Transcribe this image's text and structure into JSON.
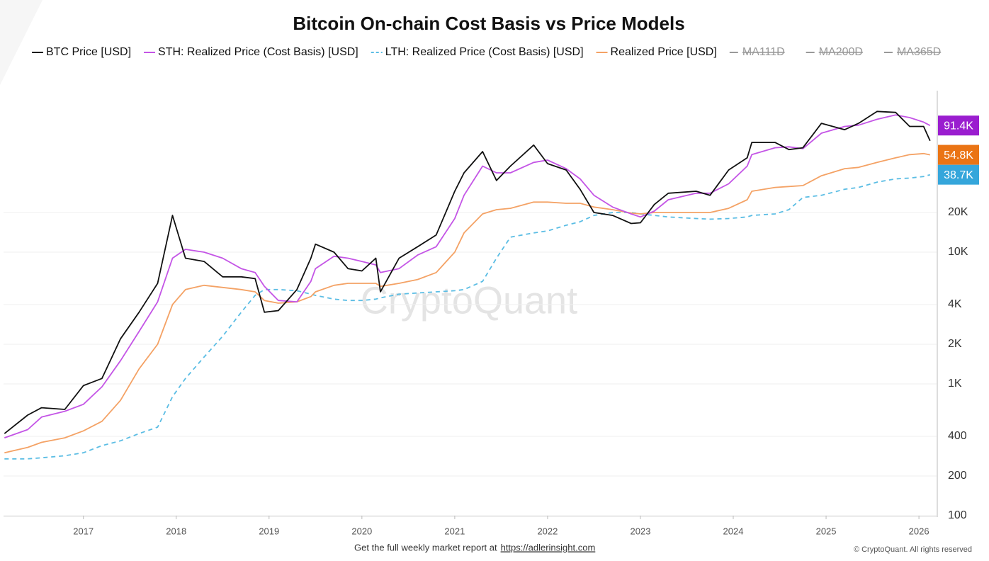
{
  "chart_data": {
    "type": "line",
    "title": "Bitcoin On-chain Cost Basis vs Price Models",
    "log_y": true,
    "grid": true,
    "legend_position": "top",
    "legend_hidden": [
      "MA111D",
      "MA200D",
      "MA365D"
    ],
    "watermark": "CryptoQuant",
    "footer_text": "Get the full weekly market report at",
    "footer_link": "https://adlerinsight.com",
    "copyright": "© CryptoQuant. All rights reserved",
    "xlim": [
      2016.14,
      2026.19
    ],
    "xticks": [
      2017,
      2018,
      2019,
      2020,
      2021,
      2022,
      2023,
      2024,
      2025,
      2026
    ],
    "ylim": [
      100,
      164000
    ],
    "yticks": [
      100,
      200,
      400,
      {
        "value": 1000,
        "label": "1K"
      },
      {
        "value": 2000,
        "label": "2K"
      },
      {
        "value": 4000,
        "label": "4K"
      },
      {
        "value": 10000,
        "label": "10K"
      },
      {
        "value": 20000,
        "label": "20K"
      }
    ],
    "x": [
      2016.15,
      2016.4,
      2016.55,
      2016.8,
      2017.0,
      2017.2,
      2017.4,
      2017.6,
      2017.8,
      2017.96,
      2018.1,
      2018.3,
      2018.5,
      2018.7,
      2018.85,
      2018.95,
      2019.1,
      2019.3,
      2019.45,
      2019.5,
      2019.7,
      2019.85,
      2020.0,
      2020.15,
      2020.2,
      2020.4,
      2020.6,
      2020.8,
      2021.0,
      2021.1,
      2021.3,
      2021.45,
      2021.6,
      2021.85,
      2022.0,
      2022.2,
      2022.35,
      2022.5,
      2022.7,
      2022.9,
      2023.0,
      2023.15,
      2023.3,
      2023.6,
      2023.75,
      2023.95,
      2024.15,
      2024.2,
      2024.45,
      2024.6,
      2024.75,
      2024.95,
      2025.2,
      2025.35,
      2025.55,
      2025.75,
      2025.9,
      2026.05,
      2026.12
    ],
    "series": [
      {
        "name": "BTC Price [USD]",
        "color": "#111111",
        "dash": false,
        "values": [
          420,
          580,
          660,
          640,
          970,
          1100,
          2200,
          3500,
          5800,
          19000,
          9000,
          8500,
          6500,
          6500,
          6300,
          3500,
          3600,
          5200,
          9000,
          11500,
          10000,
          7500,
          7200,
          9000,
          5000,
          9000,
          11000,
          13500,
          29000,
          40000,
          58000,
          35000,
          45000,
          65000,
          47000,
          42000,
          30000,
          20000,
          19000,
          16500,
          16700,
          23000,
          28000,
          29000,
          27000,
          42000,
          52000,
          68000,
          68000,
          60000,
          62000,
          95000,
          85000,
          95000,
          117000,
          115000,
          90000,
          90000,
          70000
        ]
      },
      {
        "name": "STH: Realized Price (Cost Basis) [USD]",
        "color": "#c455e6",
        "dash": false,
        "end_label": "91.4K",
        "badge_color": "#9a1dcf",
        "values": [
          390,
          450,
          560,
          620,
          700,
          950,
          1500,
          2500,
          4200,
          9000,
          10500,
          10000,
          9000,
          7500,
          7000,
          5500,
          4300,
          4200,
          6000,
          7500,
          9300,
          9000,
          8500,
          8000,
          7000,
          7500,
          9500,
          11000,
          18000,
          27000,
          45000,
          40000,
          40000,
          48000,
          50000,
          43000,
          36000,
          27000,
          22000,
          19500,
          18500,
          20500,
          25000,
          28000,
          28000,
          33000,
          45000,
          55000,
          62000,
          63000,
          61000,
          80000,
          90000,
          92000,
          102000,
          110000,
          105000,
          97000,
          91400
        ]
      },
      {
        "name": "LTH: Realized Price (Cost Basis) [USD]",
        "color": "#5bbde4",
        "dash": true,
        "end_label": "38.7K",
        "badge_color": "#35a6db",
        "values": [
          270,
          270,
          275,
          285,
          300,
          340,
          370,
          420,
          470,
          800,
          1100,
          1600,
          2300,
          3500,
          4700,
          5200,
          5200,
          5100,
          4800,
          4700,
          4400,
          4300,
          4300,
          4400,
          4500,
          4800,
          4900,
          5000,
          5100,
          5200,
          6000,
          9000,
          13000,
          14000,
          14500,
          16000,
          17000,
          19000,
          20000,
          20000,
          19500,
          19000,
          18500,
          18000,
          17800,
          18000,
          18500,
          19000,
          19500,
          21000,
          26000,
          27000,
          30000,
          31000,
          34000,
          36000,
          36500,
          37500,
          38700
        ]
      },
      {
        "name": "Realized Price [USD]",
        "color": "#f4a265",
        "dash": false,
        "end_label": "54.8K",
        "badge_color": "#ea7414",
        "values": [
          300,
          330,
          360,
          390,
          440,
          520,
          750,
          1300,
          2000,
          4000,
          5200,
          5600,
          5400,
          5200,
          5000,
          4300,
          4100,
          4200,
          4600,
          5000,
          5600,
          5800,
          5800,
          5800,
          5500,
          5800,
          6200,
          7000,
          10000,
          14000,
          19500,
          21000,
          21500,
          24000,
          24000,
          23500,
          23500,
          22000,
          21000,
          19800,
          19500,
          20000,
          20000,
          20000,
          20000,
          21500,
          25000,
          29000,
          31000,
          31500,
          32000,
          38000,
          43000,
          44000,
          48000,
          52000,
          55000,
          56000,
          54800
        ]
      }
    ]
  }
}
